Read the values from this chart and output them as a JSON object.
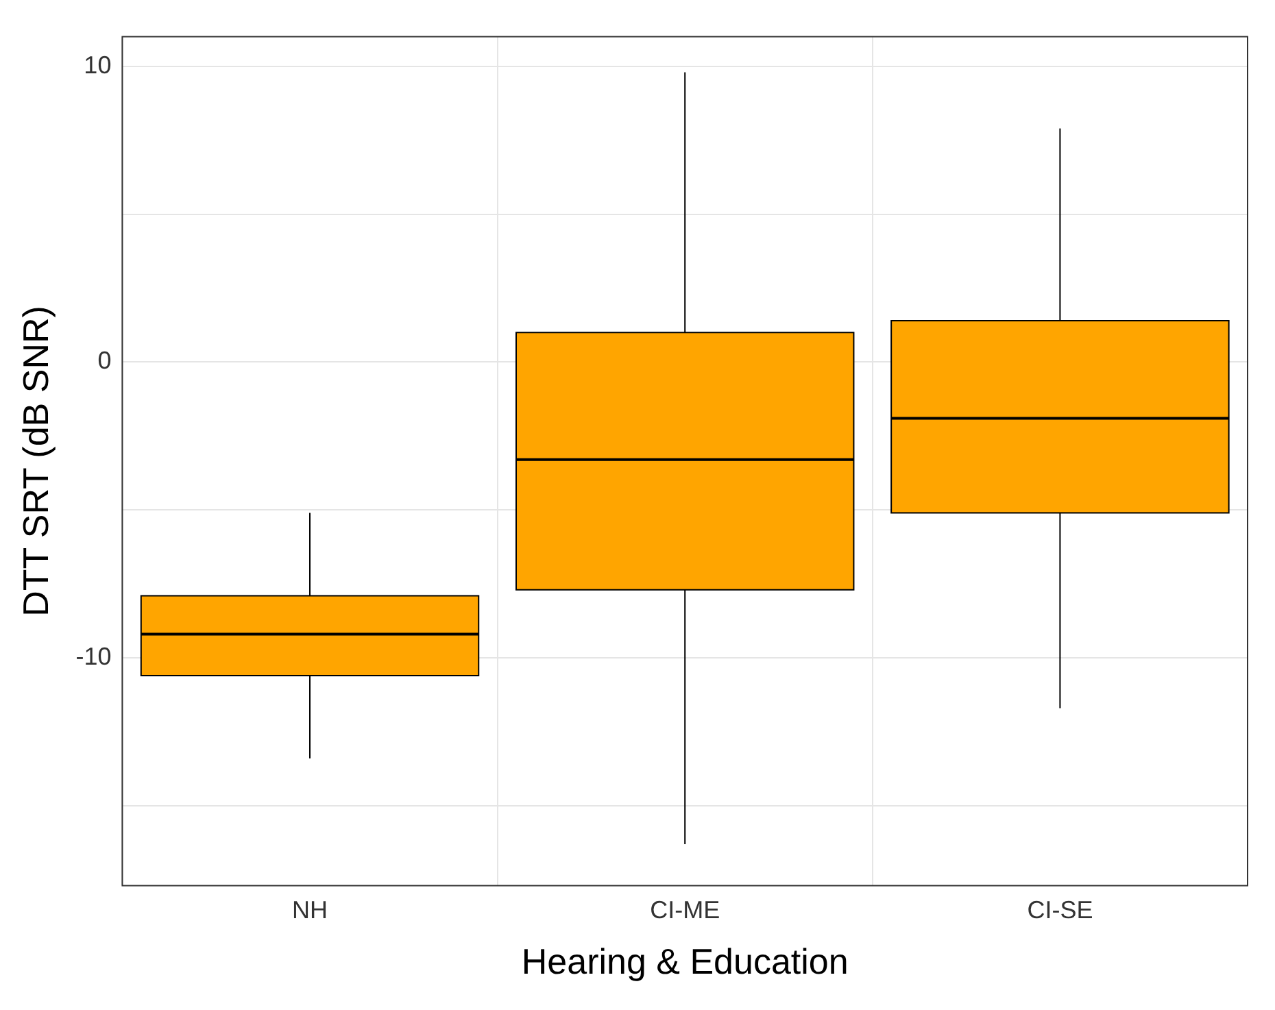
{
  "chart_data": {
    "type": "box",
    "xlabel": "Hearing & Education",
    "ylabel": "DTT SRT (dB SNR)",
    "categories": [
      "NH",
      "CI-ME",
      "CI-SE"
    ],
    "series": [
      {
        "color": "#ffa500",
        "boxes": [
          {
            "low": -13.4,
            "q1": -10.6,
            "median": -9.2,
            "q3": -7.9,
            "high": -5.1
          },
          {
            "low": -16.3,
            "q1": -7.7,
            "median": -3.3,
            "q3": 1.0,
            "high": 9.8
          },
          {
            "low": -11.7,
            "q1": -5.1,
            "median": -1.9,
            "q3": 1.4,
            "high": 7.9
          }
        ]
      }
    ],
    "ylim": [
      -17.7,
      11
    ],
    "yticks": [
      {
        "value": -15,
        "label": null
      },
      -10,
      {
        "value": -5,
        "label": null
      },
      0,
      {
        "value": 5,
        "label": null
      },
      10
    ],
    "grid": true
  }
}
